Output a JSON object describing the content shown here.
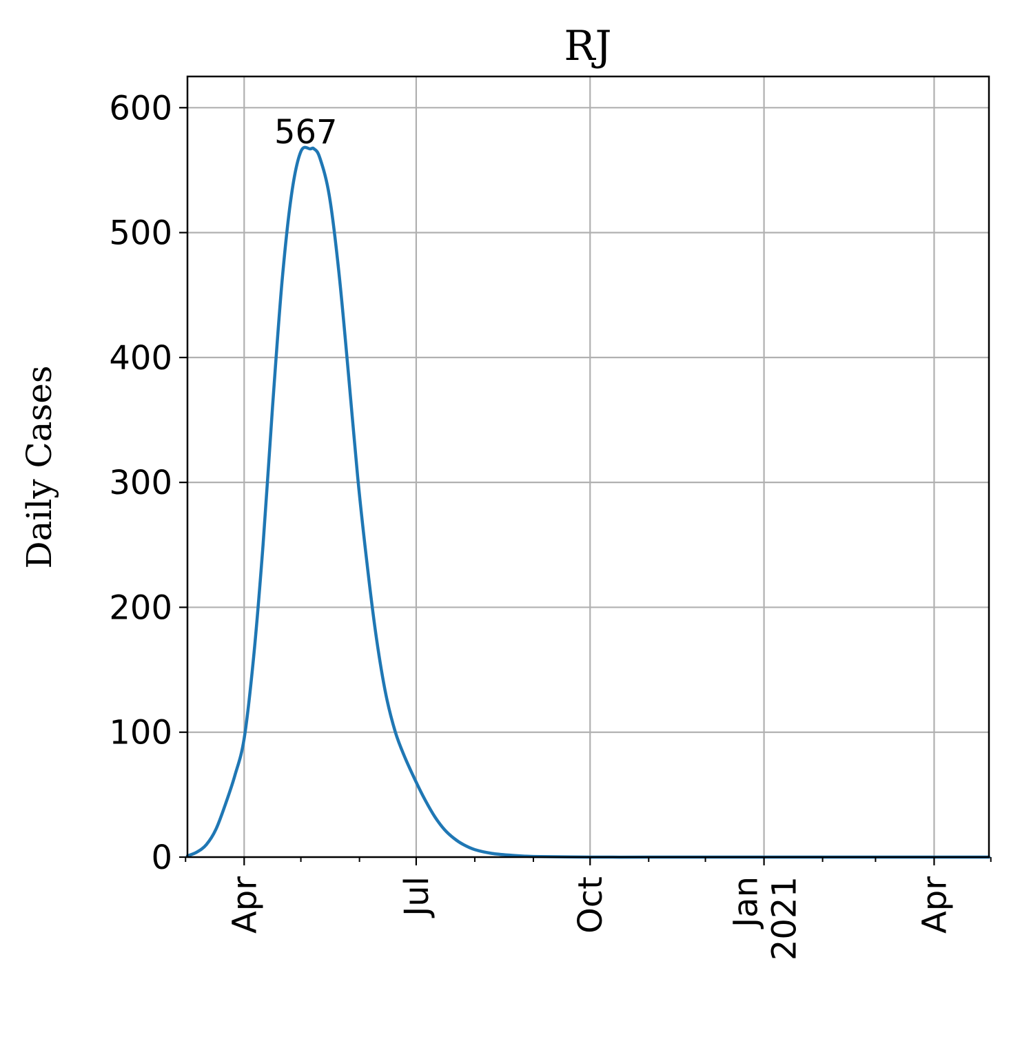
{
  "chart_data": {
    "type": "line",
    "title": "RJ",
    "xlabel": "",
    "ylabel": "Daily Cases",
    "xlim": [
      "2020-03-02",
      "2021-04-30"
    ],
    "ylim": [
      0,
      625
    ],
    "grid": true,
    "legend": "none",
    "x_ticks": [
      {
        "date": "2020-04-01",
        "label": "Apr",
        "sublabel": ""
      },
      {
        "date": "2020-07-01",
        "label": "Jul",
        "sublabel": ""
      },
      {
        "date": "2020-10-01",
        "label": "Oct",
        "sublabel": ""
      },
      {
        "date": "2021-01-01",
        "label": "Jan",
        "sublabel": "2021"
      },
      {
        "date": "2021-04-01",
        "label": "Apr",
        "sublabel": ""
      }
    ],
    "x_minor_ticks": [
      "2020-03-01",
      "2020-05-01",
      "2020-06-01",
      "2020-08-01",
      "2020-09-01",
      "2020-11-01",
      "2020-12-01",
      "2021-02-01",
      "2021-03-01",
      "2021-05-01"
    ],
    "y_ticks": [
      0,
      100,
      200,
      300,
      400,
      500,
      600
    ],
    "series": [
      {
        "color": "#1f77b4",
        "x": [
          "2020-03-02",
          "2020-03-07",
          "2020-03-12",
          "2020-03-17",
          "2020-03-22",
          "2020-03-27",
          "2020-04-01",
          "2020-04-06",
          "2020-04-11",
          "2020-04-16",
          "2020-04-21",
          "2020-04-26",
          "2020-05-01",
          "2020-05-06",
          "2020-05-08",
          "2020-05-11",
          "2020-05-16",
          "2020-05-21",
          "2020-05-26",
          "2020-05-31",
          "2020-06-05",
          "2020-06-10",
          "2020-06-15",
          "2020-06-20",
          "2020-06-25",
          "2020-07-01",
          "2020-07-06",
          "2020-07-11",
          "2020-07-16",
          "2020-07-21",
          "2020-07-26",
          "2020-08-01",
          "2020-08-10",
          "2020-08-20",
          "2020-09-01",
          "2020-10-01",
          "2020-11-01",
          "2020-12-01",
          "2021-01-01",
          "2021-02-01",
          "2021-03-01",
          "2021-04-01",
          "2021-04-30"
        ],
        "y": [
          1,
          4,
          10,
          22,
          42,
          65,
          95,
          160,
          250,
          360,
          460,
          530,
          565,
          567,
          567,
          560,
          530,
          470,
          390,
          305,
          235,
          175,
          130,
          100,
          80,
          60,
          45,
          32,
          22,
          15,
          10,
          6,
          3,
          1.5,
          0.5,
          0,
          0,
          0,
          0,
          0,
          0,
          0,
          0
        ]
      }
    ],
    "annotations": [
      {
        "text": "567",
        "x": "2020-05-08",
        "y": 567
      }
    ]
  }
}
